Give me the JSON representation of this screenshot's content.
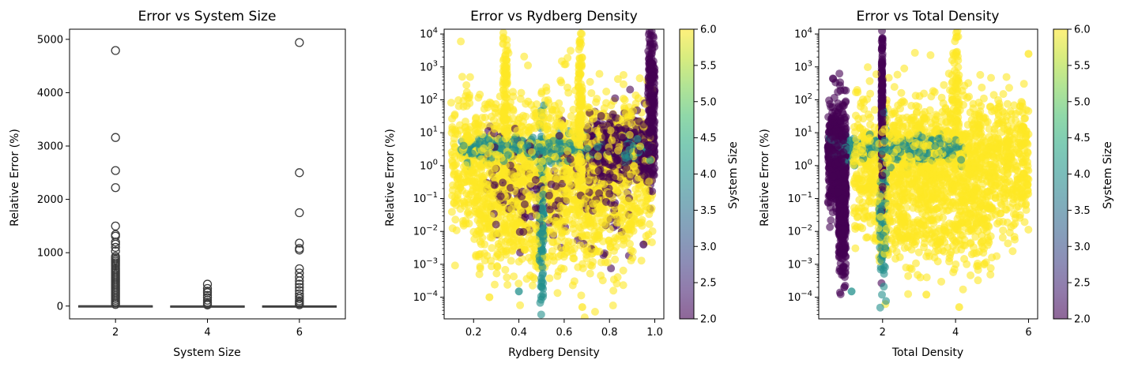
{
  "chart_data": [
    {
      "type": "box",
      "title": "Error vs System Size",
      "xlabel": "System Size",
      "ylabel": "Relative Error (%)",
      "categories": [
        "2",
        "4",
        "6"
      ],
      "ylim": [
        -240,
        5190
      ],
      "yticks": [
        0,
        1000,
        2000,
        3000,
        4000,
        5000
      ],
      "box_color": "#3b3b3b",
      "boxes": [
        {
          "category": "2",
          "median": 2,
          "q1": 0.5,
          "q3": 5,
          "whisker_low": 0,
          "whisker_high": 12,
          "outliers": [
            4790,
            3160,
            2540,
            2220,
            1500,
            1340,
            1310,
            1200,
            1160,
            1100,
            1030,
            930,
            900,
            870,
            840,
            810,
            780,
            750,
            710,
            680,
            650,
            620,
            590,
            560,
            530,
            500,
            470,
            440,
            410,
            380,
            350,
            320,
            290,
            260,
            230,
            200,
            170,
            140,
            110,
            80,
            55,
            30
          ]
        },
        {
          "category": "4",
          "median": 1,
          "q1": 0.2,
          "q3": 2,
          "whisker_low": 0,
          "whisker_high": 5,
          "outliers": [
            410,
            330,
            280,
            250,
            200,
            160,
            110,
            70,
            40,
            20
          ]
        },
        {
          "category": "6",
          "median": 1,
          "q1": 0.2,
          "q3": 3,
          "whisker_low": 0,
          "whisker_high": 8,
          "outliers": [
            4940,
            2500,
            1750,
            1180,
            1080,
            1050,
            700,
            620,
            540,
            470,
            410,
            350,
            290,
            230,
            180,
            140,
            100,
            70,
            45,
            25
          ]
        }
      ]
    },
    {
      "type": "scatter",
      "title": "Error vs Rydberg Density",
      "xlabel": "Rydberg Density",
      "ylabel": "Relative Error (%)",
      "xlim": [
        0.07,
        1.04
      ],
      "xticks": [
        0.2,
        0.4,
        0.6,
        0.8,
        1.0
      ],
      "ylim": [
        2.2e-05,
        14000
      ],
      "yscale": "log",
      "yticks_exp": [
        -4,
        -3,
        -2,
        -1,
        0,
        1,
        2,
        3,
        4
      ],
      "color_by": "System Size",
      "colorbar": {
        "label": "System Size",
        "min": 2.0,
        "max": 6.0,
        "ticks": [
          "2.0",
          "2.5",
          "3.0",
          "3.5",
          "4.0",
          "4.5",
          "5.0",
          "5.5",
          "6.0"
        ]
      },
      "clusters": [
        {
          "system_size": 6,
          "count": 1500,
          "x": [
            0.1,
            0.99
          ],
          "logy_center": 0.0,
          "logy_spread": 1.1
        },
        {
          "system_size": 6,
          "count": 400,
          "x": [
            0.2,
            0.9
          ],
          "logy_center": -2.0,
          "logy_spread": 0.7
        },
        {
          "system_size": 6,
          "count": 120,
          "x": [
            0.33,
            0.35
          ],
          "logy_center": 2.0,
          "logy_spread": 1.6
        },
        {
          "system_size": 6,
          "count": 120,
          "x": [
            0.66,
            0.68
          ],
          "logy_center": 2.0,
          "logy_spread": 1.6
        },
        {
          "system_size": 6,
          "count": 60,
          "x": [
            0.3,
            1.0
          ],
          "logy_center": 1.2,
          "logy_spread": 0.5
        },
        {
          "system_size": 4,
          "count": 400,
          "x": [
            0.14,
            0.99
          ],
          "logy_center": 0.5,
          "logy_spread": 0.2
        },
        {
          "system_size": 4,
          "count": 150,
          "x": [
            0.49,
            0.51
          ],
          "logy_center": -1.5,
          "logy_spread": 1.3
        },
        {
          "system_size": 2,
          "count": 500,
          "x": [
            0.7,
            1.0
          ],
          "logy_center": 0.5,
          "logy_spread": 0.5
        },
        {
          "system_size": 2,
          "count": 220,
          "x": [
            0.25,
            0.9
          ],
          "logy_center": -0.7,
          "logy_spread": 0.8
        },
        {
          "system_size": 2,
          "count": 200,
          "x": [
            0.97,
            1.0
          ],
          "logy_center": 2.0,
          "logy_spread": 1.2
        }
      ],
      "notable_points": [
        {
          "x": 0.33,
          "y": 5000,
          "system_size": 6
        },
        {
          "x": 0.98,
          "y": 5000,
          "system_size": 2
        },
        {
          "x": 0.68,
          "y": 5e-05,
          "system_size": 6
        },
        {
          "x": 0.27,
          "y": 0.0001,
          "system_size": 6
        },
        {
          "x": 0.4,
          "y": 0.00015,
          "system_size": 4
        },
        {
          "x": 0.95,
          "y": 0.004,
          "system_size": 2
        }
      ]
    },
    {
      "type": "scatter",
      "title": "Error vs Total Density",
      "xlabel": "Total Density",
      "ylabel": "Relative Error (%)",
      "xlim": [
        0.25,
        6.25
      ],
      "xticks": [
        2,
        4,
        6
      ],
      "ylim": [
        2.2e-05,
        14000
      ],
      "yscale": "log",
      "yticks_exp": [
        -4,
        -3,
        -2,
        -1,
        0,
        1,
        2,
        3,
        4
      ],
      "color_by": "System Size",
      "colorbar": {
        "label": "System Size",
        "min": 2.0,
        "max": 6.0,
        "ticks": [
          "2.0",
          "2.5",
          "3.0",
          "3.5",
          "4.0",
          "4.5",
          "5.0",
          "5.5",
          "6.0"
        ]
      },
      "clusters": [
        {
          "system_size": 6,
          "count": 1500,
          "x": [
            1.2,
            6.0
          ],
          "logy_center": 0.0,
          "logy_spread": 1.1
        },
        {
          "system_size": 6,
          "count": 300,
          "x": [
            1.8,
            5.0
          ],
          "logy_center": -1.8,
          "logy_spread": 0.7
        },
        {
          "system_size": 6,
          "count": 100,
          "x": [
            3.9,
            4.1
          ],
          "logy_center": 2.0,
          "logy_spread": 1.3
        },
        {
          "system_size": 6,
          "count": 60,
          "x": [
            2.0,
            6.0
          ],
          "logy_center": 1.2,
          "logy_spread": 0.5
        },
        {
          "system_size": 4,
          "count": 350,
          "x": [
            0.5,
            4.2
          ],
          "logy_center": 0.5,
          "logy_spread": 0.2
        },
        {
          "system_size": 4,
          "count": 120,
          "x": [
            1.9,
            2.1
          ],
          "logy_center": -1.3,
          "logy_spread": 1.3
        },
        {
          "system_size": 2,
          "count": 500,
          "x": [
            0.5,
            1.0
          ],
          "logy_center": 0.2,
          "logy_spread": 0.8
        },
        {
          "system_size": 2,
          "count": 300,
          "x": [
            0.8,
            1.0
          ],
          "logy_center": -1.5,
          "logy_spread": 0.9
        },
        {
          "system_size": 2,
          "count": 200,
          "x": [
            1.97,
            2.0
          ],
          "logy_center": 1.5,
          "logy_spread": 1.4
        }
      ],
      "notable_points": [
        {
          "x": 2.0,
          "y": 5000,
          "system_size": 2
        },
        {
          "x": 6.0,
          "y": 2500,
          "system_size": 6
        },
        {
          "x": 4.1,
          "y": 5e-05,
          "system_size": 6
        },
        {
          "x": 0.95,
          "y": 0.0002,
          "system_size": 2
        },
        {
          "x": 1.15,
          "y": 0.00015,
          "system_size": 4
        },
        {
          "x": 3.2,
          "y": 0.00012,
          "system_size": 6
        }
      ]
    }
  ]
}
